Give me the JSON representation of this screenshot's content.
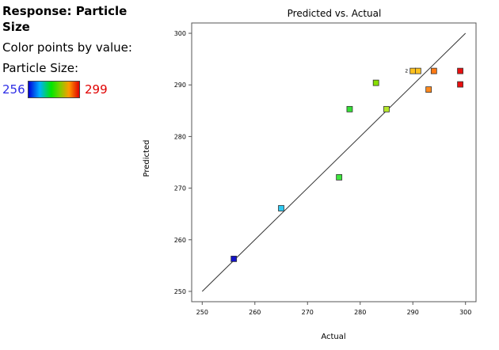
{
  "legend": {
    "title": "Response: Particle Size",
    "color_label": "Color points by value:",
    "variable_label": "Particle Size:",
    "scale_min": "256",
    "scale_max": "299",
    "colors": {
      "min": "#2e2ee6",
      "max": "#e00000"
    }
  },
  "chart_data": {
    "type": "scatter",
    "title": "Predicted vs. Actual",
    "xlabel": "Actual",
    "ylabel": "Predicted",
    "xlim": [
      248,
      302
    ],
    "ylim": [
      248,
      302
    ],
    "xticks": [
      250,
      260,
      270,
      280,
      290,
      300
    ],
    "yticks": [
      250,
      260,
      270,
      280,
      290,
      300
    ],
    "grid": false,
    "reference_line": {
      "from": [
        250,
        250
      ],
      "to": [
        300,
        300
      ]
    },
    "points": [
      {
        "x": 256,
        "y": 256.3,
        "color": "#1414c8"
      },
      {
        "x": 265,
        "y": 266.1,
        "color": "#2ec8f0"
      },
      {
        "x": 276,
        "y": 272.1,
        "color": "#3ee63e"
      },
      {
        "x": 278,
        "y": 285.3,
        "color": "#36e036"
      },
      {
        "x": 283,
        "y": 290.4,
        "color": "#88e000"
      },
      {
        "x": 285,
        "y": 285.3,
        "color": "#b4e62a"
      },
      {
        "x": 290,
        "y": 292.7,
        "color": "#ffc21e"
      },
      {
        "x": 291,
        "y": 292.7,
        "color": "#ffc21e"
      },
      {
        "x": 293,
        "y": 289.1,
        "color": "#ff8a1e"
      },
      {
        "x": 294,
        "y": 292.7,
        "color": "#ff7a14"
      },
      {
        "x": 299,
        "y": 290.1,
        "color": "#e81010"
      },
      {
        "x": 299,
        "y": 292.7,
        "color": "#e81010"
      }
    ],
    "annotations": [
      {
        "text": "2",
        "x": 290,
        "y": 292.7
      }
    ]
  }
}
